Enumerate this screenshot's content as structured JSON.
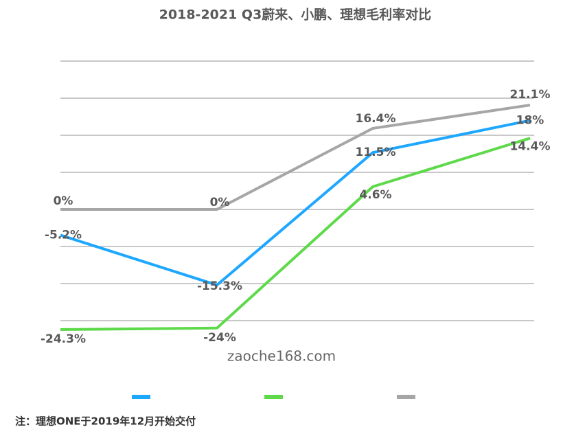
{
  "chart_data": {
    "type": "line",
    "title": "2018-2021 Q3蔚来、小鹏、理想毛利率对比",
    "watermark": "zaoche168.com",
    "note": "注：理想ONE于2019年12月开始交付",
    "categories": [
      null,
      null,
      null,
      null
    ],
    "series": [
      {
        "color": "#1ea7ff",
        "values": [
          -5.2,
          -15.3,
          11.5,
          18
        ],
        "value_labels": [
          "-5.2%",
          "-15.3%",
          "11.5%",
          "18%"
        ]
      },
      {
        "color": "#5ed94a",
        "values": [
          -24.3,
          -24,
          4.6,
          14.4
        ],
        "value_labels": [
          "-24.3%",
          "-24%",
          "4.6%",
          "14.4%"
        ]
      },
      {
        "color": "#a6a6a6",
        "values": [
          0,
          0,
          16.4,
          21.1
        ],
        "value_labels": [
          "0%",
          "0%",
          "16.4%",
          "21.1%"
        ]
      }
    ],
    "ylim": [
      -30,
      30
    ],
    "yticks": [
      -22.5,
      -15,
      -7.5,
      0,
      7.5,
      15,
      22.5,
      30
    ],
    "grid": true
  }
}
